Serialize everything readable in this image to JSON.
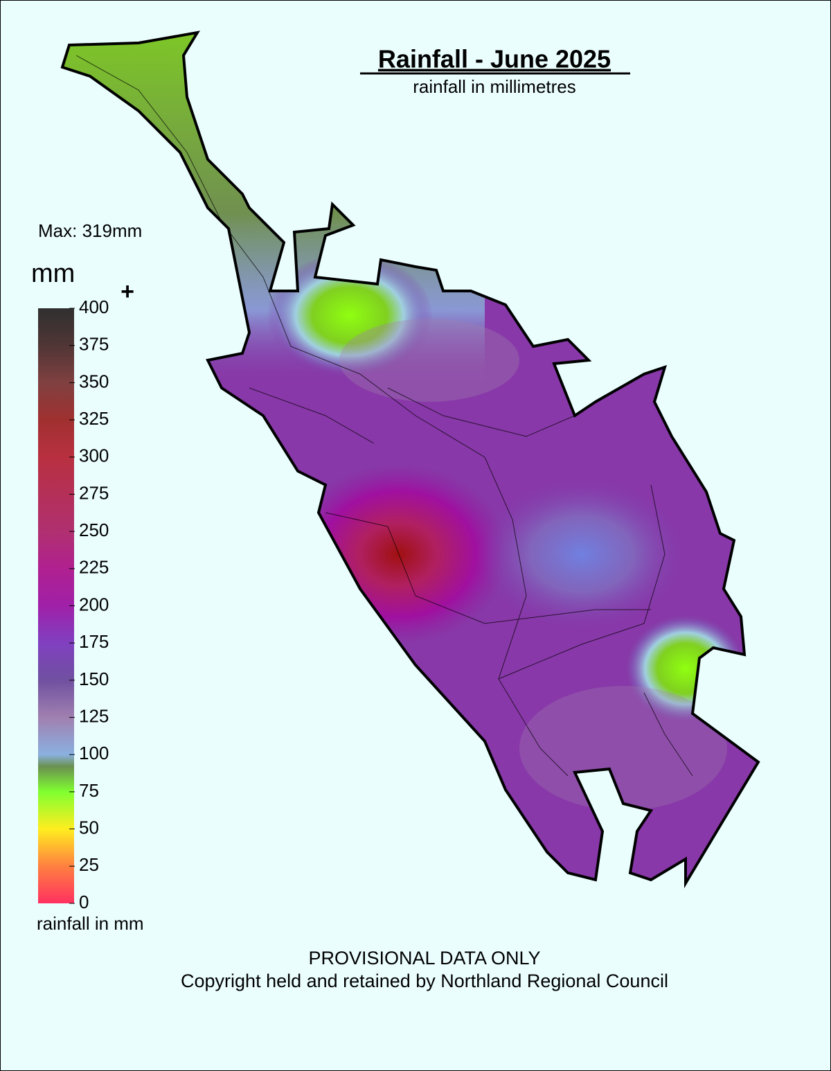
{
  "header": {
    "title": "Rainfall - June 2025",
    "subtitle": "rainfall in millimetres"
  },
  "max_label": "Max: 319mm",
  "legend": {
    "unit": "mm",
    "overflow": "+",
    "lim": [
      0,
      400
    ],
    "ticks": [
      400,
      375,
      350,
      325,
      300,
      275,
      250,
      225,
      200,
      175,
      150,
      125,
      100,
      75,
      50,
      25,
      0
    ],
    "caption": "rainfall in mm"
  },
  "footer": {
    "notice": "PROVISIONAL DATA ONLY",
    "copyright": "Copyright held and retained by Northland Regional Council"
  }
}
